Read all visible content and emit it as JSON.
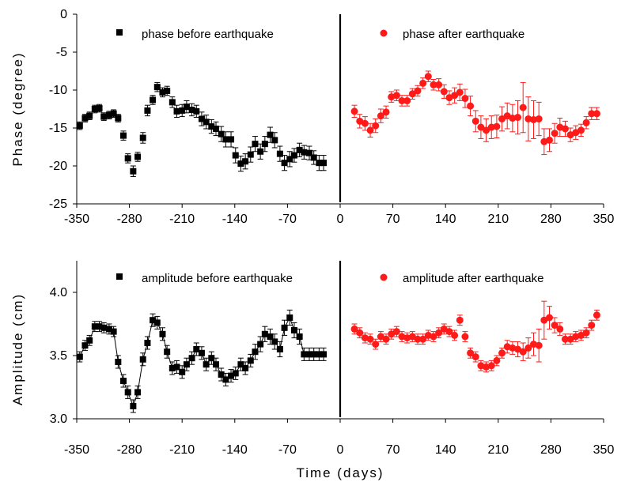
{
  "chart_data": [
    {
      "type": "scatter",
      "ylabel": "Phase (degree)",
      "xlabel": "",
      "xlim": [
        -350,
        350
      ],
      "ylim": [
        -25,
        0
      ],
      "xticks": [
        "-350",
        "-280",
        "-210",
        "-140",
        "-70",
        "0",
        "70",
        "140",
        "210",
        "280",
        "350"
      ],
      "yticks": [
        "0",
        "-5",
        "-10",
        "-15",
        "-20",
        "-25"
      ],
      "grid": false,
      "legend_position": "top",
      "series": [
        {
          "name": "phase before earthquake",
          "color": "#000000",
          "marker": "square",
          "x": [
            -346,
            -339,
            -333,
            -326,
            -320,
            -314,
            -307,
            -301,
            -295,
            -288,
            -282,
            -275,
            -269,
            -262,
            -256,
            -249,
            -243,
            -236,
            -230,
            -223,
            -217,
            -210,
            -204,
            -197,
            -191,
            -184,
            -178,
            -171,
            -165,
            -158,
            -152,
            -145,
            -139,
            -132,
            -126,
            -119,
            -113,
            -106,
            -100,
            -93,
            -87,
            -80,
            -74,
            -67,
            -61,
            -54,
            -48,
            -41,
            -35,
            -28,
            -22
          ],
          "y": [
            -14.7,
            -13.7,
            -13.4,
            -12.5,
            -12.4,
            -13.5,
            -13.3,
            -13.1,
            -13.7,
            -16.0,
            -19.0,
            -20.7,
            -18.8,
            -16.3,
            -12.7,
            -11.3,
            -9.6,
            -10.3,
            -10.1,
            -11.6,
            -12.8,
            -12.7,
            -12.2,
            -12.6,
            -12.8,
            -13.8,
            -14.2,
            -14.8,
            -15.1,
            -15.8,
            -16.5,
            -16.5,
            -18.6,
            -19.7,
            -19.4,
            -18.5,
            -17.1,
            -18.1,
            -17.1,
            -15.9,
            -16.6,
            -18.4,
            -19.6,
            -19.1,
            -18.6,
            -17.9,
            -18.2,
            -18.3,
            -18.9,
            -19.6,
            -19.6
          ],
          "err": [
            0.5,
            0.5,
            0.5,
            0.5,
            0.5,
            0.5,
            0.5,
            0.5,
            0.5,
            0.6,
            0.6,
            0.7,
            0.6,
            0.7,
            0.7,
            0.6,
            0.6,
            0.6,
            0.6,
            0.7,
            0.8,
            0.8,
            0.8,
            0.8,
            0.8,
            0.9,
            0.9,
            0.9,
            0.9,
            1.0,
            1.0,
            1.0,
            1.0,
            1.0,
            1.0,
            1.0,
            1.0,
            1.0,
            1.0,
            1.0,
            1.0,
            1.0,
            1.0,
            1.0,
            0.9,
            0.9,
            0.9,
            0.9,
            0.9,
            1.0,
            1.0
          ]
        },
        {
          "name": "phase after earthquake",
          "color": "#ff1a1a",
          "marker": "circle",
          "x": [
            19,
            26,
            33,
            40,
            47,
            54,
            61,
            68,
            75,
            82,
            89,
            96,
            103,
            110,
            117,
            124,
            131,
            138,
            145,
            152,
            159,
            166,
            173,
            180,
            187,
            194,
            201,
            208,
            215,
            222,
            229,
            236,
            243,
            250,
            257,
            264,
            271,
            278,
            285,
            292,
            299,
            306,
            313,
            320,
            327,
            334,
            341
          ],
          "y": [
            -12.8,
            -14.1,
            -14.4,
            -15.3,
            -14.7,
            -13.4,
            -12.9,
            -10.9,
            -10.7,
            -11.4,
            -11.4,
            -10.5,
            -10.1,
            -9.1,
            -8.2,
            -9.3,
            -9.3,
            -10.2,
            -11.0,
            -10.7,
            -10.3,
            -11.1,
            -12.1,
            -14.1,
            -14.9,
            -15.3,
            -14.9,
            -14.8,
            -13.8,
            -13.4,
            -13.7,
            -13.6,
            -12.3,
            -13.8,
            -13.9,
            -13.8,
            -16.8,
            -16.6,
            -15.7,
            -14.9,
            -15.1,
            -15.9,
            -15.6,
            -15.3,
            -14.3,
            -13.1,
            -13.1
          ],
          "err": [
            0.8,
            0.9,
            0.9,
            0.9,
            0.9,
            0.9,
            0.8,
            0.7,
            0.7,
            0.7,
            0.7,
            0.7,
            0.7,
            0.7,
            0.7,
            0.7,
            0.8,
            0.9,
            0.9,
            1.0,
            1.1,
            1.2,
            1.3,
            1.4,
            1.5,
            1.5,
            1.5,
            1.5,
            1.6,
            1.7,
            1.8,
            2.2,
            3.3,
            2.9,
            2.5,
            2.2,
            1.7,
            1.5,
            1.3,
            1.2,
            1.0,
            0.9,
            0.9,
            0.8,
            0.8,
            0.8,
            0.8
          ]
        }
      ]
    },
    {
      "type": "scatter",
      "ylabel": "Amplitude (cm)",
      "xlabel": "Time (days)",
      "xlim": [
        -350,
        350
      ],
      "ylim": [
        3.0,
        4.25
      ],
      "xticks": [
        "-350",
        "-280",
        "-210",
        "-140",
        "-70",
        "0",
        "70",
        "140",
        "210",
        "280",
        "350"
      ],
      "yticks": [
        "3.0",
        "3.5",
        "4.0"
      ],
      "grid": false,
      "legend_position": "top",
      "series": [
        {
          "name": "amplitude before earthquake",
          "color": "#000000",
          "marker": "square",
          "connected": true,
          "x": [
            -346,
            -339,
            -333,
            -326,
            -320,
            -314,
            -307,
            -301,
            -295,
            -288,
            -282,
            -275,
            -269,
            -262,
            -256,
            -249,
            -243,
            -236,
            -230,
            -223,
            -217,
            -210,
            -204,
            -197,
            -191,
            -184,
            -178,
            -171,
            -165,
            -158,
            -152,
            -145,
            -139,
            -132,
            -126,
            -119,
            -113,
            -106,
            -100,
            -93,
            -87,
            -80,
            -74,
            -67,
            -61,
            -54,
            -48,
            -41,
            -35,
            -28,
            -22
          ],
          "y": [
            3.49,
            3.58,
            3.62,
            3.73,
            3.73,
            3.72,
            3.71,
            3.69,
            3.45,
            3.3,
            3.21,
            3.1,
            3.21,
            3.47,
            3.6,
            3.78,
            3.76,
            3.67,
            3.53,
            3.4,
            3.41,
            3.37,
            3.43,
            3.48,
            3.55,
            3.52,
            3.43,
            3.48,
            3.43,
            3.35,
            3.31,
            3.34,
            3.36,
            3.43,
            3.4,
            3.46,
            3.53,
            3.59,
            3.67,
            3.65,
            3.61,
            3.55,
            3.72,
            3.8,
            3.7,
            3.65,
            3.51,
            3.51,
            3.51,
            3.51,
            3.51
          ],
          "err": [
            0.04,
            0.04,
            0.04,
            0.04,
            0.04,
            0.04,
            0.04,
            0.04,
            0.05,
            0.05,
            0.05,
            0.05,
            0.05,
            0.05,
            0.05,
            0.05,
            0.05,
            0.05,
            0.05,
            0.05,
            0.05,
            0.05,
            0.05,
            0.05,
            0.05,
            0.05,
            0.05,
            0.05,
            0.05,
            0.05,
            0.05,
            0.05,
            0.05,
            0.05,
            0.05,
            0.05,
            0.06,
            0.06,
            0.06,
            0.06,
            0.06,
            0.06,
            0.06,
            0.06,
            0.06,
            0.06,
            0.05,
            0.05,
            0.05,
            0.05,
            0.05
          ]
        },
        {
          "name": "amplitude after earthquake",
          "color": "#ff1a1a",
          "marker": "circle",
          "x": [
            19,
            26,
            33,
            40,
            47,
            54,
            61,
            68,
            75,
            82,
            89,
            96,
            103,
            110,
            117,
            124,
            131,
            138,
            145,
            152,
            159,
            166,
            173,
            180,
            187,
            194,
            201,
            208,
            215,
            222,
            229,
            236,
            243,
            250,
            257,
            264,
            271,
            278,
            285,
            292,
            299,
            306,
            313,
            320,
            327,
            334,
            341
          ],
          "y": [
            3.71,
            3.68,
            3.64,
            3.63,
            3.59,
            3.65,
            3.63,
            3.67,
            3.69,
            3.65,
            3.64,
            3.65,
            3.63,
            3.63,
            3.66,
            3.65,
            3.68,
            3.71,
            3.69,
            3.66,
            3.78,
            3.65,
            3.52,
            3.49,
            3.42,
            3.41,
            3.42,
            3.46,
            3.52,
            3.57,
            3.56,
            3.55,
            3.53,
            3.56,
            3.59,
            3.58,
            3.78,
            3.8,
            3.74,
            3.71,
            3.63,
            3.63,
            3.65,
            3.66,
            3.68,
            3.74,
            3.82
          ],
          "err": [
            0.04,
            0.04,
            0.04,
            0.04,
            0.04,
            0.04,
            0.04,
            0.04,
            0.04,
            0.04,
            0.04,
            0.04,
            0.04,
            0.04,
            0.04,
            0.04,
            0.04,
            0.04,
            0.04,
            0.04,
            0.04,
            0.04,
            0.04,
            0.04,
            0.04,
            0.04,
            0.04,
            0.04,
            0.04,
            0.05,
            0.05,
            0.06,
            0.07,
            0.08,
            0.09,
            0.13,
            0.15,
            0.09,
            0.06,
            0.05,
            0.04,
            0.04,
            0.04,
            0.04,
            0.04,
            0.04,
            0.04
          ]
        }
      ]
    }
  ]
}
